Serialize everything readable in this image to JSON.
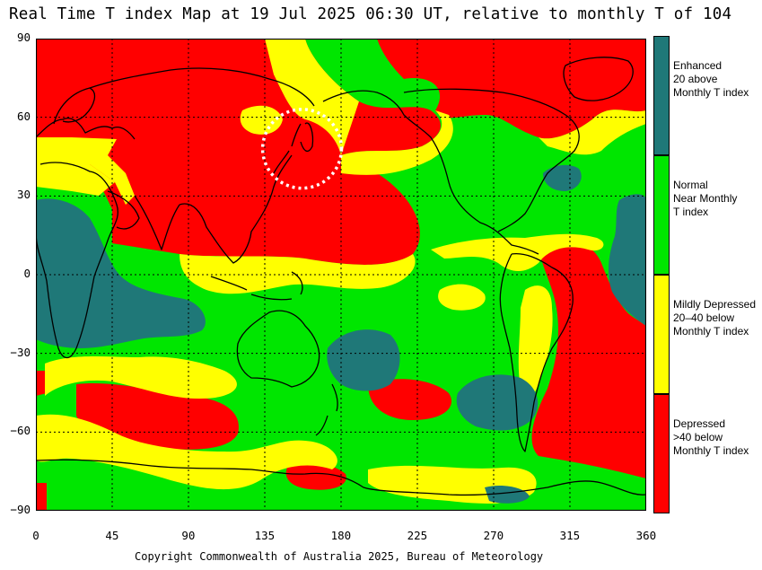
{
  "title": "Real Time T index Map at 19 Jul 2025 06:30 UT, relative to monthly T of 104",
  "copyright": "Copyright Commonwealth of Australia 2025, Bureau of Meteorology",
  "axes": {
    "lon_ticks": [
      "0",
      "45",
      "90",
      "135",
      "180",
      "225",
      "270",
      "315",
      "360"
    ],
    "lat_ticks": [
      "90",
      "60",
      "30",
      "0",
      "−30",
      "−60",
      "−90"
    ],
    "lon_range": [
      0,
      360
    ],
    "lat_range": [
      -90,
      90
    ],
    "grid": true
  },
  "legend": [
    {
      "lines": [
        "Enhanced",
        "20 above",
        "Monthly T index"
      ],
      "color": "#1f7878"
    },
    {
      "lines": [
        "Normal",
        "Near Monthly",
        "T index"
      ],
      "color": "#00e600"
    },
    {
      "lines": [
        "Mildly Depressed",
        "20–40 below",
        "Monthly T index"
      ],
      "color": "#ffff00"
    },
    {
      "lines": [
        "Depressed",
        ">40 below",
        "Monthly T index"
      ],
      "color": "#ff0000"
    }
  ],
  "annotation": {
    "type": "dashed-circle",
    "color": "#ffffff",
    "center_lon": 157,
    "center_lat": 48,
    "radius_deg": 15
  },
  "colors": {
    "enhanced": "#1f7878",
    "normal": "#00e600",
    "mild": "#ffff00",
    "depressed": "#ff0000"
  }
}
